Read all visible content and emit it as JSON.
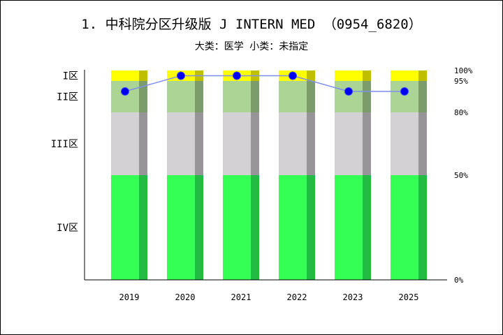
{
  "chart_data": {
    "type": "bar",
    "title": "1. 中科院分区升级版 J INTERN MED （0954_6820）",
    "subtitle": "大类：医学 小类：未指定",
    "categories": [
      "2019",
      "2020",
      "2021",
      "2022",
      "2023",
      "2025"
    ],
    "zones": [
      {
        "label": "IV区",
        "from": 0,
        "to": 50,
        "color": "#33ff55",
        "shade": "#22bb44"
      },
      {
        "label": "III区",
        "from": 50,
        "to": 80,
        "color": "#d3d1d3",
        "shade": "#979597"
      },
      {
        "label": "II区",
        "from": 80,
        "to": 95,
        "color": "#acd494",
        "shade": "#7d9c6b"
      },
      {
        "label": "I区",
        "from": 95,
        "to": 100,
        "color": "#ffff00",
        "shade": "#bfbf00"
      }
    ],
    "right_ticks": [
      "0%",
      "50%",
      "80%",
      "95%",
      "100%"
    ],
    "right_tick_values": [
      0,
      50,
      80,
      95,
      100
    ],
    "series": [
      {
        "values": [
          90,
          97.5,
          97.5,
          97.5,
          90,
          90
        ]
      }
    ],
    "ylim": [
      0,
      100
    ],
    "line_color": "#7f8fef",
    "marker_color": "#0000ee"
  }
}
